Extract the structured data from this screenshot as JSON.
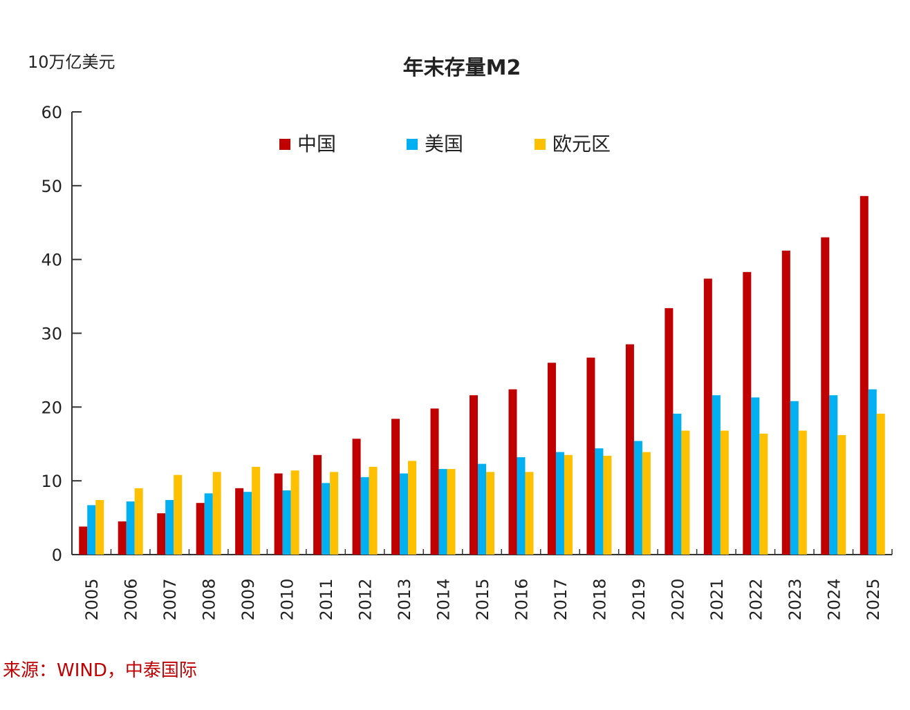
{
  "chart_data": {
    "type": "bar",
    "title": "年末存量M2",
    "ylabel": "10万亿美元",
    "xlabel": "",
    "ylim": [
      0,
      60
    ],
    "yticks": [
      0,
      10,
      20,
      30,
      40,
      50,
      60
    ],
    "categories": [
      "2005",
      "2006",
      "2007",
      "2008",
      "2009",
      "2010",
      "2011",
      "2012",
      "2013",
      "2014",
      "2015",
      "2016",
      "2017",
      "2018",
      "2019",
      "2020",
      "2021",
      "2022",
      "2023",
      "2024",
      "2025"
    ],
    "series": [
      {
        "name": "中国",
        "color": "#c00000",
        "values": [
          3.8,
          4.5,
          5.6,
          7.0,
          9.0,
          11.0,
          13.5,
          15.7,
          18.4,
          19.8,
          21.6,
          22.4,
          26.0,
          26.7,
          28.5,
          33.4,
          37.4,
          38.3,
          41.2,
          43.0,
          48.6
        ]
      },
      {
        "name": "美国",
        "color": "#00b0f0",
        "values": [
          6.7,
          7.2,
          7.4,
          8.3,
          8.5,
          8.7,
          9.7,
          10.5,
          11.0,
          11.6,
          12.3,
          13.2,
          13.9,
          14.4,
          15.4,
          19.1,
          21.6,
          21.3,
          20.8,
          21.6,
          22.4
        ]
      },
      {
        "name": "欧元区",
        "color": "#ffc000",
        "values": [
          7.4,
          9.0,
          10.8,
          11.2,
          11.9,
          11.4,
          11.2,
          11.9,
          12.7,
          11.6,
          11.2,
          11.2,
          13.5,
          13.4,
          13.9,
          16.8,
          16.8,
          16.4,
          16.8,
          16.2,
          19.1
        ]
      }
    ],
    "legend_position": "top-center",
    "grid": false
  },
  "source_note": "来源：WIND，中泰国际"
}
